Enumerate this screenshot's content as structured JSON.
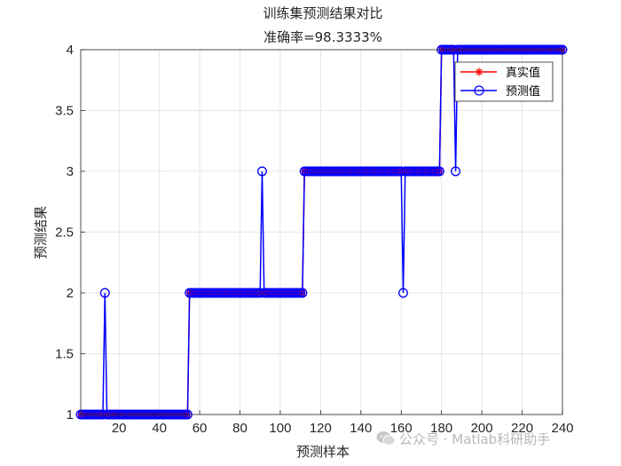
{
  "chart_data": {
    "type": "line",
    "title": "训练集预测结果对比",
    "subtitle": "准确率=98.3333%",
    "xlabel": "预测样本",
    "ylabel": "预测结果",
    "xlim": [
      1,
      240
    ],
    "ylim": [
      1,
      4
    ],
    "xticks": [
      20,
      40,
      60,
      80,
      100,
      120,
      140,
      160,
      180,
      200,
      220,
      240
    ],
    "yticks": [
      1,
      1.5,
      2,
      2.5,
      3,
      3.5,
      4
    ],
    "grid": true,
    "legend_position": "top-right",
    "class_segments": [
      {
        "x_start": 1,
        "x_end": 54,
        "value": 1
      },
      {
        "x_start": 55,
        "x_end": 111,
        "value": 2
      },
      {
        "x_start": 112,
        "x_end": 179,
        "value": 3
      },
      {
        "x_start": 180,
        "x_end": 240,
        "value": 4
      }
    ],
    "misclassified": [
      {
        "x": 13,
        "true": 1,
        "pred": 2
      },
      {
        "x": 91,
        "true": 2,
        "pred": 3
      },
      {
        "x": 161,
        "true": 3,
        "pred": 2
      },
      {
        "x": 187,
        "true": 4,
        "pred": 3
      }
    ],
    "series": [
      {
        "name": "真实值",
        "color": "#ff0000",
        "marker": "asterisk"
      },
      {
        "name": "预测值",
        "color": "#0000ff",
        "marker": "circle"
      }
    ]
  },
  "watermark": {
    "text": "公众号 · Matlab科研助手"
  }
}
